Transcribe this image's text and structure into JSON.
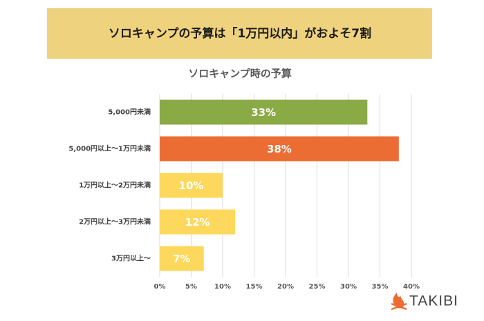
{
  "header": {
    "title": "ソロキャンプの予算は「1万円以内」がおよそ7割"
  },
  "logo": "TAKIBI",
  "chart_data": {
    "type": "barh",
    "title": "ソロキャンプ時の予算",
    "categories": [
      "5,000円未満",
      "5,000円以上～1万円未満",
      "1万円以上～2万円未満",
      "2万円以上～3万円未満",
      "3万円以上～"
    ],
    "values": [
      33,
      38,
      10,
      12,
      7
    ],
    "value_labels": [
      "33%",
      "38%",
      "10%",
      "12%",
      "7%"
    ],
    "colors": [
      "#8aaa45",
      "#ec6d33",
      "#fdd85c",
      "#fdd85c",
      "#fdd85c"
    ],
    "xlim": [
      0,
      40
    ],
    "xticks": [
      {
        "value": 0,
        "label": "0%"
      },
      {
        "value": 5,
        "label": "5%"
      },
      {
        "value": 10,
        "label": "10%"
      },
      {
        "value": 15,
        "label": "15%"
      },
      {
        "value": 20,
        "label": "20%"
      },
      {
        "value": 25,
        "label": "25%"
      },
      {
        "value": 30,
        "label": "30%"
      },
      {
        "value": 35,
        "label": "35%"
      },
      {
        "value": 40,
        "label": "40%"
      }
    ],
    "grid": true
  }
}
